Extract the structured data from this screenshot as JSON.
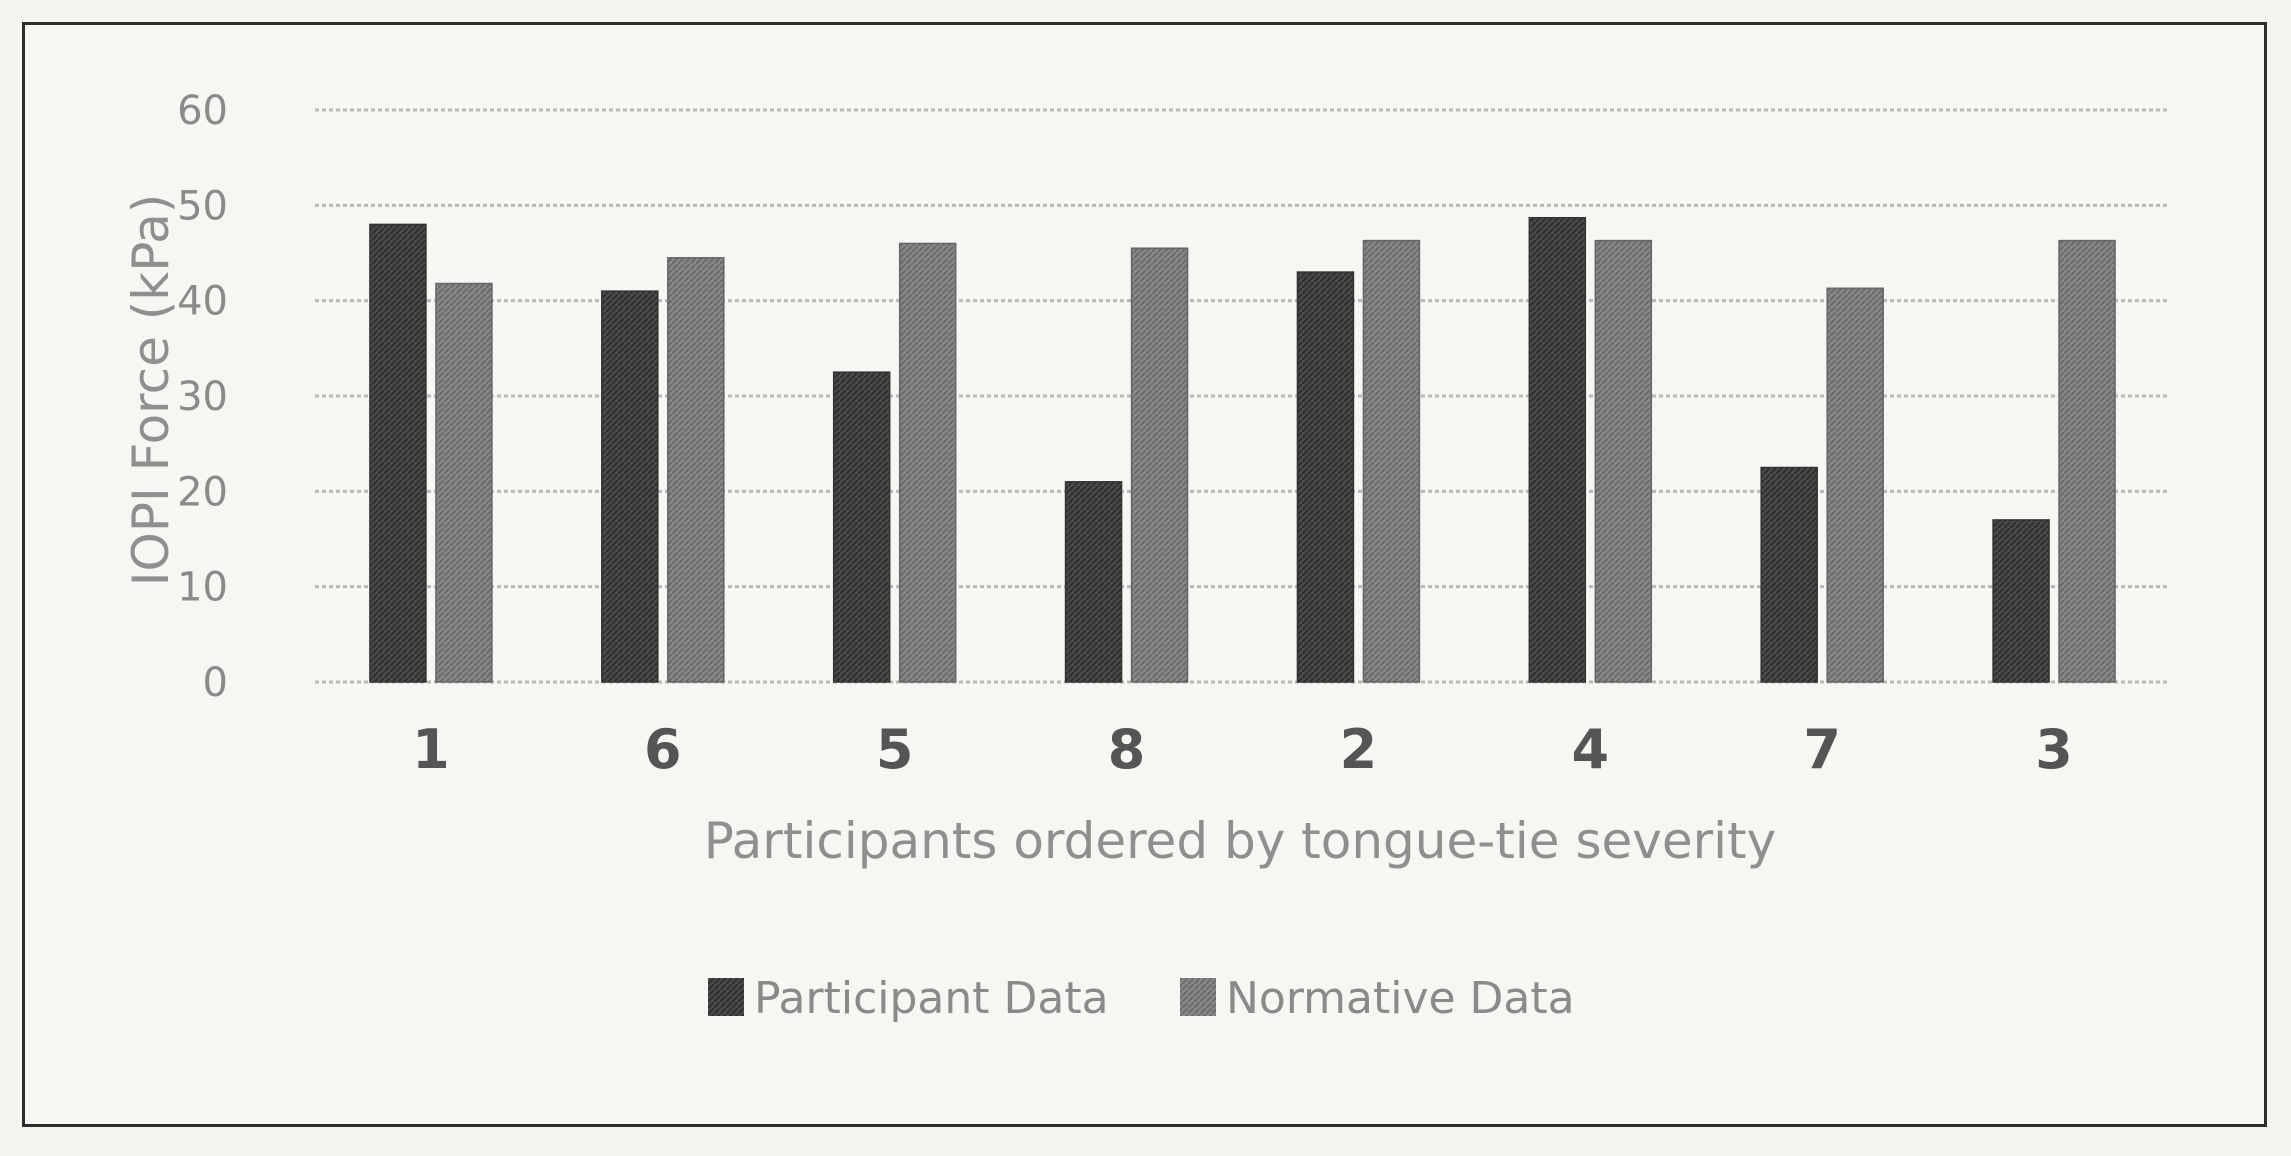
{
  "chart_data": {
    "type": "bar",
    "title": "",
    "xlabel": "Participants ordered by tongue-tie severity",
    "ylabel": "IOPI Force (kPa)",
    "ylim": [
      0,
      60
    ],
    "yticks": [
      "0",
      "10",
      "20",
      "30",
      "40",
      "50",
      "60"
    ],
    "grid": true,
    "legend_position": "bottom",
    "categories": [
      "1",
      "6",
      "5",
      "8",
      "2",
      "4",
      "7",
      "3"
    ],
    "series": [
      {
        "name": "Participant Data",
        "color": "#4a4a4a",
        "values": [
          48,
          41,
          32.5,
          21,
          43,
          48.7,
          22.5,
          17
        ]
      },
      {
        "name": "Normative Data",
        "color": "#868686",
        "values": [
          41.8,
          44.5,
          46,
          45.5,
          46.3,
          46.3,
          41.3,
          46.3
        ]
      }
    ]
  }
}
